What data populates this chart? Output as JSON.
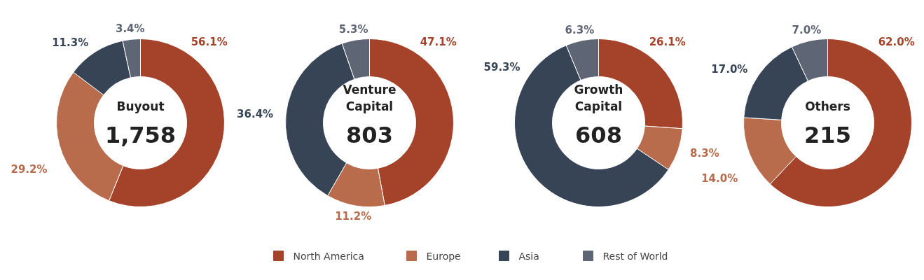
{
  "chart_data": [
    {
      "type": "donut",
      "title": "Buyout",
      "annotations": [
        "1,758"
      ],
      "categories": [
        "North America",
        "Europe",
        "Asia",
        "Rest of World"
      ],
      "values": [
        56.1,
        29.2,
        11.3,
        3.4
      ],
      "value_labels": [
        "56.1%",
        "29.2%",
        "11.3%",
        "3.4%"
      ],
      "colors": [
        "#a5432a",
        "#b86c4b",
        "#374455",
        "#5e6575"
      ],
      "legend": "bottom"
    },
    {
      "type": "donut",
      "title": "Venture Capital",
      "annotations": [
        "803"
      ],
      "values": [
        47.1,
        11.2,
        36.4,
        5.3
      ],
      "value_labels": [
        "47.1%",
        "11.2%",
        "36.4%",
        "5.3%"
      ],
      "colors": [
        "#a5432a",
        "#b86c4b",
        "#374455",
        "#5e6575"
      ]
    },
    {
      "type": "donut",
      "title": "Growth Capital",
      "annotations": [
        "608"
      ],
      "values": [
        26.1,
        8.3,
        59.3,
        6.3
      ],
      "value_labels": [
        "26.1%",
        "8.3%",
        "59.3%",
        "6.3%"
      ],
      "colors": [
        "#a5432a",
        "#b86c4b",
        "#374455",
        "#5e6575"
      ]
    },
    {
      "type": "donut",
      "title": "Others",
      "annotations": [
        "215"
      ],
      "values": [
        62.0,
        14.0,
        17.0,
        7.0
      ],
      "value_labels": [
        "62.0%",
        "14.0%",
        "17.0%",
        "7.0%"
      ],
      "colors": [
        "#a5432a",
        "#b86c4b",
        "#374455",
        "#5e6575"
      ]
    }
  ]
}
